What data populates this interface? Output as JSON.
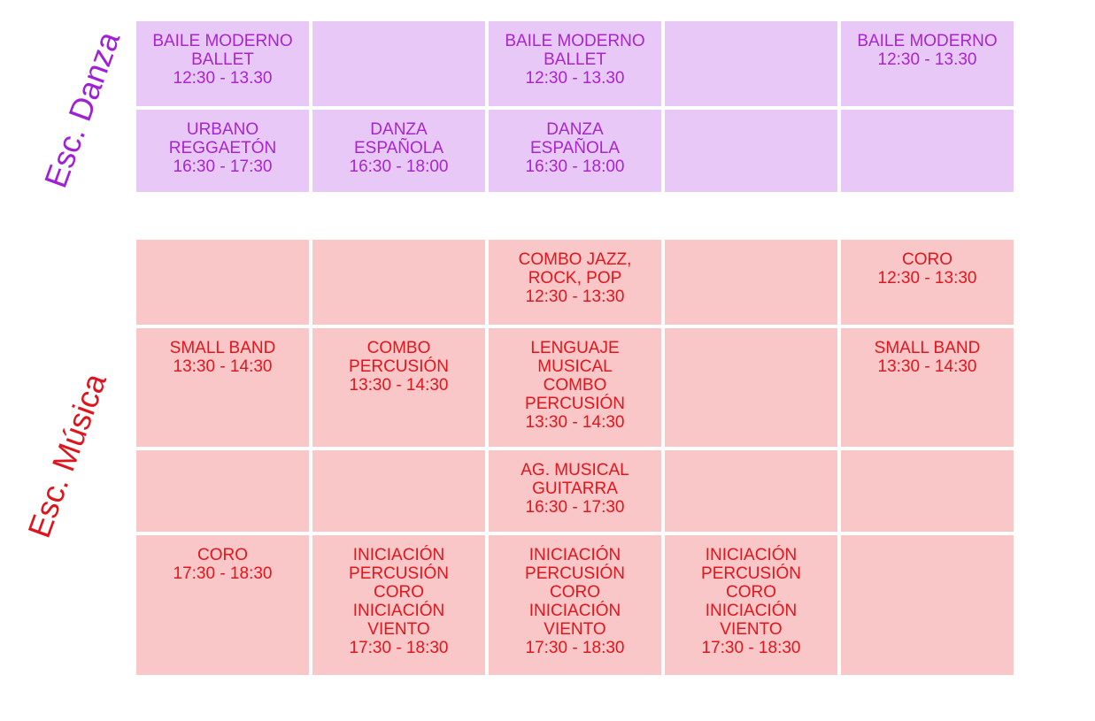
{
  "danza": {
    "label": "Esc. Danza",
    "rows": [
      [
        [
          "BAILE MODERNO",
          "BALLET",
          "12:30 - 13.30"
        ],
        [],
        [
          "BAILE MODERNO",
          "BALLET",
          "12:30 - 13.30"
        ],
        [],
        [
          "BAILE MODERNO",
          "12:30 - 13.30"
        ]
      ],
      [
        [
          "URBANO",
          "REGGAETÓN",
          "16:30 - 17:30"
        ],
        [
          "DANZA",
          "ESPAÑOLA",
          "16:30 - 18:00"
        ],
        [
          "DANZA",
          "ESPAÑOLA",
          "16:30 - 18:00"
        ],
        [],
        []
      ]
    ]
  },
  "musica": {
    "label": "Esc. Música",
    "rows": [
      [
        [],
        [],
        [
          "COMBO JAZZ,",
          "ROCK, POP",
          "12:30 - 13:30"
        ],
        [],
        [
          "CORO",
          "12:30 - 13:30"
        ]
      ],
      [
        [
          "SMALL BAND",
          "13:30 - 14:30"
        ],
        [
          "COMBO",
          "PERCUSIÓN",
          "13:30 - 14:30"
        ],
        [
          "LENGUAJE",
          "MUSICAL",
          "COMBO",
          "PERCUSIÓN",
          "13:30 - 14:30"
        ],
        [],
        [
          "SMALL BAND",
          "13:30 - 14:30"
        ]
      ],
      [
        [],
        [],
        [
          "AG. MUSICAL",
          "GUITARRA",
          "16:30 - 17:30"
        ],
        [],
        []
      ],
      [
        [
          "CORO",
          "17:30 - 18:30"
        ],
        [
          "INICIACIÓN",
          "PERCUSIÓN",
          "CORO",
          "INICIACIÓN",
          "VIENTO",
          "17:30 - 18:30"
        ],
        [
          "INICIACIÓN",
          "PERCUSIÓN",
          "CORO",
          "INICIACIÓN",
          "VIENTO",
          "17:30 - 18:30"
        ],
        [
          "INICIACIÓN",
          "PERCUSIÓN",
          "CORO",
          "INICIACIÓN",
          "VIENTO",
          "17:30 - 18:30"
        ],
        []
      ]
    ]
  }
}
